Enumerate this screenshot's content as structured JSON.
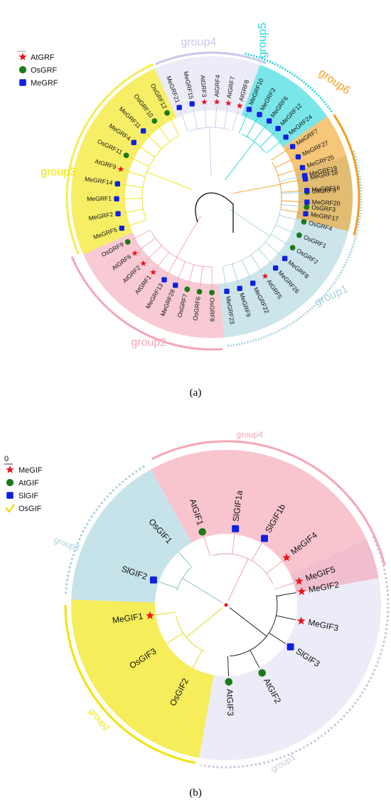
{
  "panel_a": {
    "caption": "(a)",
    "legend": [
      {
        "label": "AtGRF",
        "marker": "star-icon"
      },
      {
        "label": "OsGRF",
        "marker": "circle-icon"
      },
      {
        "label": "MeGRF",
        "marker": "square-icon"
      }
    ],
    "groups": [
      {
        "name": "group1",
        "color": "#a8d4de"
      },
      {
        "name": "group2",
        "color": "#f4a6b5"
      },
      {
        "name": "group3",
        "color": "#f0e400"
      },
      {
        "name": "group4",
        "color": "#c8c8ea"
      },
      {
        "name": "group5",
        "color": "#22d6dc"
      },
      {
        "name": "group6",
        "color": "#f0a020"
      }
    ],
    "leaves": [
      {
        "label": "MeGRF19",
        "marker": "square",
        "group": "group1"
      },
      {
        "label": "OsGRF5",
        "marker": "circle",
        "group": "group1"
      },
      {
        "label": "OsGRF3",
        "marker": "circle",
        "group": "group1"
      },
      {
        "label": "OsGRF4",
        "marker": "circle",
        "group": "group1"
      },
      {
        "label": "OsGRF1",
        "marker": "circle",
        "group": "group1"
      },
      {
        "label": "OsGRF2",
        "marker": "circle",
        "group": "group1"
      },
      {
        "label": "MeGRF8",
        "marker": "square",
        "group": "group1"
      },
      {
        "label": "MeGRF26",
        "marker": "square",
        "group": "group1"
      },
      {
        "label": "AtGRF5",
        "marker": "star",
        "group": "group1"
      },
      {
        "label": "MeGRF22",
        "marker": "square",
        "group": "group1"
      },
      {
        "label": "MeGRF9",
        "marker": "square",
        "group": "group1"
      },
      {
        "label": "MeGRF23",
        "marker": "square",
        "group": "group1"
      },
      {
        "label": "OsGRF8",
        "marker": "circle",
        "group": "group2"
      },
      {
        "label": "OsGRF6",
        "marker": "circle",
        "group": "group2"
      },
      {
        "label": "OsGRF7",
        "marker": "circle",
        "group": "group2"
      },
      {
        "label": "MeGRF28",
        "marker": "square",
        "group": "group2"
      },
      {
        "label": "MeGRF13",
        "marker": "square",
        "group": "group2"
      },
      {
        "label": "AtGRF1",
        "marker": "star",
        "group": "group2"
      },
      {
        "label": "AtGRF2",
        "marker": "star",
        "group": "group2"
      },
      {
        "label": "AtGRF6",
        "marker": "star",
        "group": "group2"
      },
      {
        "label": "OsGRF9",
        "marker": "circle",
        "group": "group2"
      },
      {
        "label": "MeGRF5",
        "marker": "square",
        "group": "group3"
      },
      {
        "label": "MeGRF2",
        "marker": "square",
        "group": "group3"
      },
      {
        "label": "MeGRF1",
        "marker": "square",
        "group": "group3"
      },
      {
        "label": "MeGRF14",
        "marker": "square",
        "group": "group3"
      },
      {
        "label": "AtGRF9",
        "marker": "star",
        "group": "group3"
      },
      {
        "label": "OsGRF11",
        "marker": "circle",
        "group": "group3"
      },
      {
        "label": "MeGRF4",
        "marker": "square",
        "group": "group3"
      },
      {
        "label": "MeGRF11",
        "marker": "square",
        "group": "group3"
      },
      {
        "label": "OsGRF10",
        "marker": "circle",
        "group": "group3"
      },
      {
        "label": "OsGRF12",
        "marker": "circle",
        "group": "group3"
      },
      {
        "label": "MeGRF21",
        "marker": "square",
        "group": "group4"
      },
      {
        "label": "MeGRF15",
        "marker": "square",
        "group": "group4"
      },
      {
        "label": "AtGRF3",
        "marker": "star",
        "group": "group4"
      },
      {
        "label": "AtGRF4",
        "marker": "star",
        "group": "group4"
      },
      {
        "label": "AtGRF7",
        "marker": "star",
        "group": "group4"
      },
      {
        "label": "AtGRF8",
        "marker": "star",
        "group": "group4"
      },
      {
        "label": "MeGRF10",
        "marker": "square",
        "group": "group5"
      },
      {
        "label": "MeGRF3",
        "marker": "square",
        "group": "group5"
      },
      {
        "label": "MeGRF6",
        "marker": "square",
        "group": "group5"
      },
      {
        "label": "MeGRF12",
        "marker": "square",
        "group": "group5"
      },
      {
        "label": "MeGRF24",
        "marker": "square",
        "group": "group5"
      },
      {
        "label": "MeGRF7",
        "marker": "square",
        "group": "group6"
      },
      {
        "label": "MeGRF27",
        "marker": "square",
        "group": "group6"
      },
      {
        "label": "MeGRF25",
        "marker": "square",
        "group": "group6"
      },
      {
        "label": "MeGRF18",
        "marker": "square",
        "group": "group6"
      },
      {
        "label": "MeGRF16",
        "marker": "square",
        "group": "group6"
      },
      {
        "label": "MeGRF20",
        "marker": "square",
        "group": "group6"
      },
      {
        "label": "MeGRF17",
        "marker": "square",
        "group": "group6"
      }
    ]
  },
  "panel_b": {
    "caption": "(b)",
    "scale_label": "0",
    "legend": [
      {
        "label": "MeGIF",
        "marker": "star-icon"
      },
      {
        "label": "AtGIF",
        "marker": "circle-icon"
      },
      {
        "label": "SlGIF",
        "marker": "square-icon"
      },
      {
        "label": "OsGIF",
        "marker": "check-icon"
      }
    ],
    "groups": [
      {
        "name": "group1",
        "color": "#dcdcf4"
      },
      {
        "name": "group2",
        "color": "#f0e400"
      },
      {
        "name": "group3",
        "color": "#a8d4de"
      },
      {
        "name": "group4",
        "color": "#f4a6b5"
      }
    ],
    "leaves": [
      {
        "label": "MeGIF2",
        "marker": "star",
        "group": "group1"
      },
      {
        "label": "MeGIF3",
        "marker": "star",
        "group": "group1"
      },
      {
        "label": "SlGIF3",
        "marker": "square",
        "group": "group1"
      },
      {
        "label": "AtGIF2",
        "marker": "circle",
        "group": "group1"
      },
      {
        "label": "AtGIF3",
        "marker": "circle",
        "group": "group1"
      },
      {
        "label": "OsGIF2",
        "marker": "none",
        "group": "group2"
      },
      {
        "label": "OsGIF3",
        "marker": "none",
        "group": "group2"
      },
      {
        "label": "MeGIF1",
        "marker": "star",
        "group": "group2"
      },
      {
        "label": "SlGIF2",
        "marker": "square",
        "group": "group3"
      },
      {
        "label": "OsGIF1",
        "marker": "none",
        "group": "group3"
      },
      {
        "label": "AtGIF1",
        "marker": "circle",
        "group": "group4"
      },
      {
        "label": "SlGIF1a",
        "marker": "square",
        "group": "group4"
      },
      {
        "label": "SlGIF1b",
        "marker": "square",
        "group": "group4"
      },
      {
        "label": "MeGIF4",
        "marker": "star",
        "group": "group4"
      },
      {
        "label": "MeGIF5",
        "marker": "star",
        "group": "group4"
      }
    ]
  },
  "colors": {
    "star": "#e8141c",
    "circle": "#1a7a1a",
    "square": "#1020e0",
    "check": "#f0d800",
    "root": "#111111",
    "root_node": "#e8141c"
  }
}
